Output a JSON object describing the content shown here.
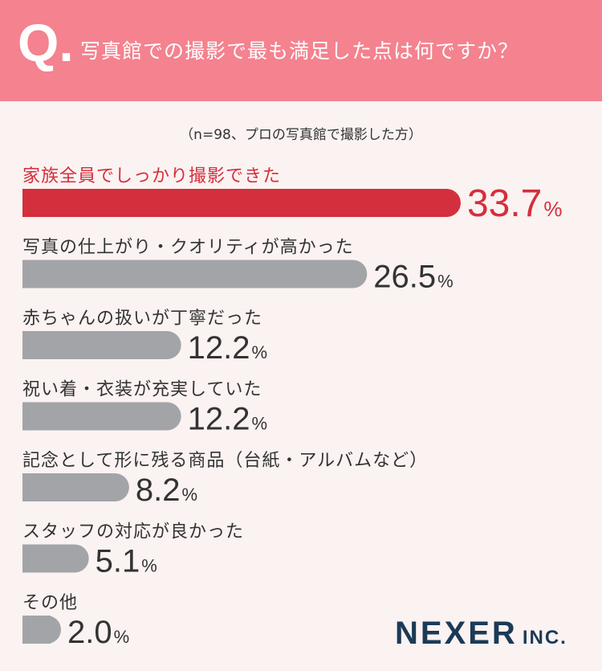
{
  "header": {
    "q_mark": "Q.",
    "title": "写真館での撮影で最も満足した点は何ですか？"
  },
  "subtitle": "（n=98、プロの写真館で撮影した方）",
  "brand": {
    "name": "NEXER",
    "suffix": "INC."
  },
  "colors": {
    "header_bg": "#f4828f",
    "page_bg": "#fbf2f2",
    "highlight": "#d42f3c",
    "bar_default": "#a2a4a8",
    "text": "#333333",
    "brand": "#1b3a57"
  },
  "chart_data": {
    "type": "bar",
    "orientation": "horizontal",
    "categories": [
      "家族全員でしっかり撮影できた",
      "写真の仕上がり・クオリティが高かった",
      "赤ちゃんの扱いが丁寧だった",
      "祝い着・衣装が充実していた",
      "記念として形に残る商品（台紙・アルバムなど）",
      "スタッフの対応が良かった",
      "その他"
    ],
    "values": [
      33.7,
      26.5,
      12.2,
      12.2,
      8.2,
      5.1,
      2.0
    ],
    "unit": "%",
    "highlight_index": 0
  }
}
